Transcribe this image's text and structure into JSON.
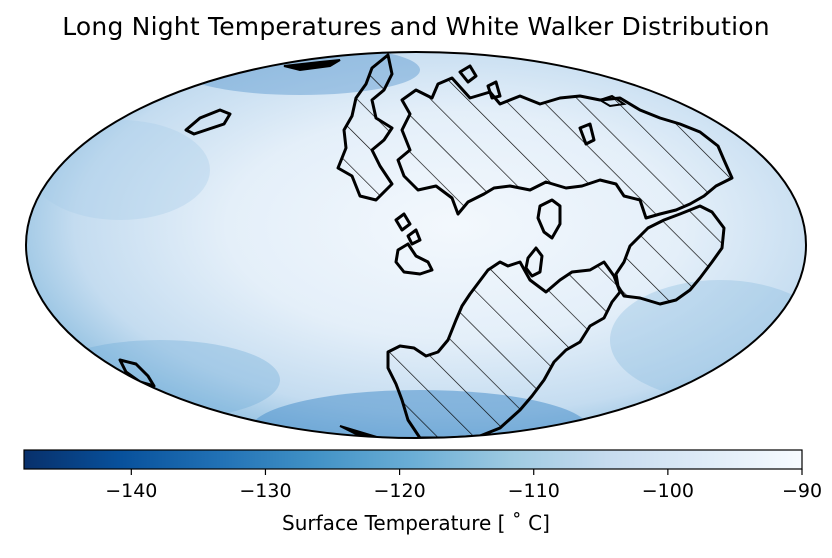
{
  "title": "Long Night Temperatures and White Walker Distribution",
  "colorbar": {
    "label": "Surface Temperature [$^\\circ$C]",
    "label_display": "Surface Temperature [ ˚ C]",
    "range": [
      -148,
      -90
    ],
    "ticks": [
      {
        "value": -140,
        "label": "−140"
      },
      {
        "value": -130,
        "label": "−130"
      },
      {
        "value": -120,
        "label": "−120"
      },
      {
        "value": -110,
        "label": "−110"
      },
      {
        "value": -100,
        "label": "−100"
      },
      {
        "value": -90,
        "label": "−90"
      }
    ],
    "colormap": "Blues_r",
    "colors": [
      "#08306b",
      "#08519c",
      "#2171b5",
      "#4292c6",
      "#6baed6",
      "#9ecae1",
      "#c6dbef",
      "#deebf7",
      "#f7fbff"
    ]
  },
  "map": {
    "projection": "mollweide",
    "hatch_pattern": "diagonal"
  }
}
